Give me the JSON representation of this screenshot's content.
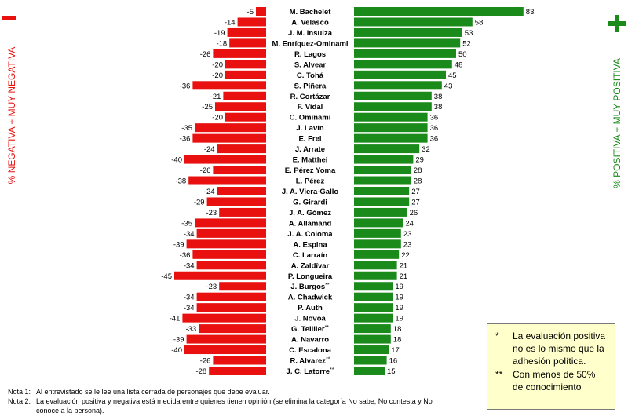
{
  "chart_data": {
    "type": "bar",
    "orientation": "diverging-horizontal",
    "negative_axis_label": "% NEGATIVA + MUY NEGATIVA",
    "positive_axis_label": "% POSITIVA + MUY POSITIVA",
    "negative_mark": "−",
    "positive_mark": "+",
    "negative_color": "#e8110f",
    "positive_color": "#1a8a1a",
    "series": [
      {
        "name": "% NEGATIVA + MUY NEGATIVA",
        "values": [
          -5,
          -14,
          -19,
          -18,
          -26,
          -20,
          -20,
          -36,
          -21,
          -25,
          -20,
          -35,
          -36,
          -24,
          -40,
          -26,
          -38,
          -24,
          -29,
          -23,
          -35,
          -34,
          -39,
          -36,
          -34,
          -45,
          -23,
          -34,
          -34,
          -41,
          -33,
          -39,
          -40,
          -26,
          -28
        ]
      },
      {
        "name": "% POSITIVA + MUY POSITIVA",
        "values": [
          83,
          58,
          53,
          52,
          50,
          48,
          45,
          43,
          38,
          38,
          36,
          36,
          36,
          32,
          29,
          28,
          28,
          27,
          27,
          26,
          24,
          23,
          23,
          22,
          21,
          21,
          19,
          19,
          19,
          19,
          18,
          18,
          17,
          16,
          15
        ]
      }
    ],
    "categories": [
      "M. Bachelet",
      "A. Velasco",
      "J. M. Insulza",
      "M. Enríquez-Ominami",
      "R. Lagos",
      "S. Alvear",
      "C. Tohá",
      "S. Piñera",
      "R. Cortázar",
      "F. Vidal",
      "C. Ominami",
      "J. Lavín",
      "E. Frei",
      "J. Arrate",
      "E. Matthei",
      "E. Pérez Yoma",
      "L. Pérez",
      "J. A. Viera-Gallo",
      "G. Girardi",
      "J. A. Gómez",
      "A. Allamand",
      "J. A. Coloma",
      "A. Espina",
      "C. Larraín",
      "A. Zaldívar",
      "P. Longueira",
      "J. Burgos",
      "A. Chadwick",
      "P. Auth",
      "J. Novoa",
      "G. Teillier",
      "A. Navarro",
      "C. Escalona",
      "R. Alvarez",
      "J. C. Latorre"
    ],
    "category_marks": [
      "",
      "",
      "",
      "",
      "",
      "",
      "",
      "",
      "",
      "",
      "",
      "",
      "",
      "",
      "",
      "",
      "",
      "",
      "",
      "",
      "",
      "",
      "",
      "",
      "",
      "",
      "**",
      "",
      "",
      "",
      "**",
      "",
      "",
      "**",
      "**"
    ]
  },
  "notes": [
    {
      "key": "Nota 1:",
      "text": "Al entrevistado se le lee una lista cerrada de personajes que debe evaluar."
    },
    {
      "key": "Nota 2:",
      "text": "La evaluación positiva y negativa está medida entre quienes tienen opinión (se elimina la categoría No sabe, No contesta y No conoce a la persona)."
    }
  ],
  "legend_box": [
    {
      "star": "*",
      "text": "La evaluación positiva no es lo mismo que la adhesión política."
    },
    {
      "star": "**",
      "text": "Con menos de 50% de conocimiento"
    }
  ]
}
